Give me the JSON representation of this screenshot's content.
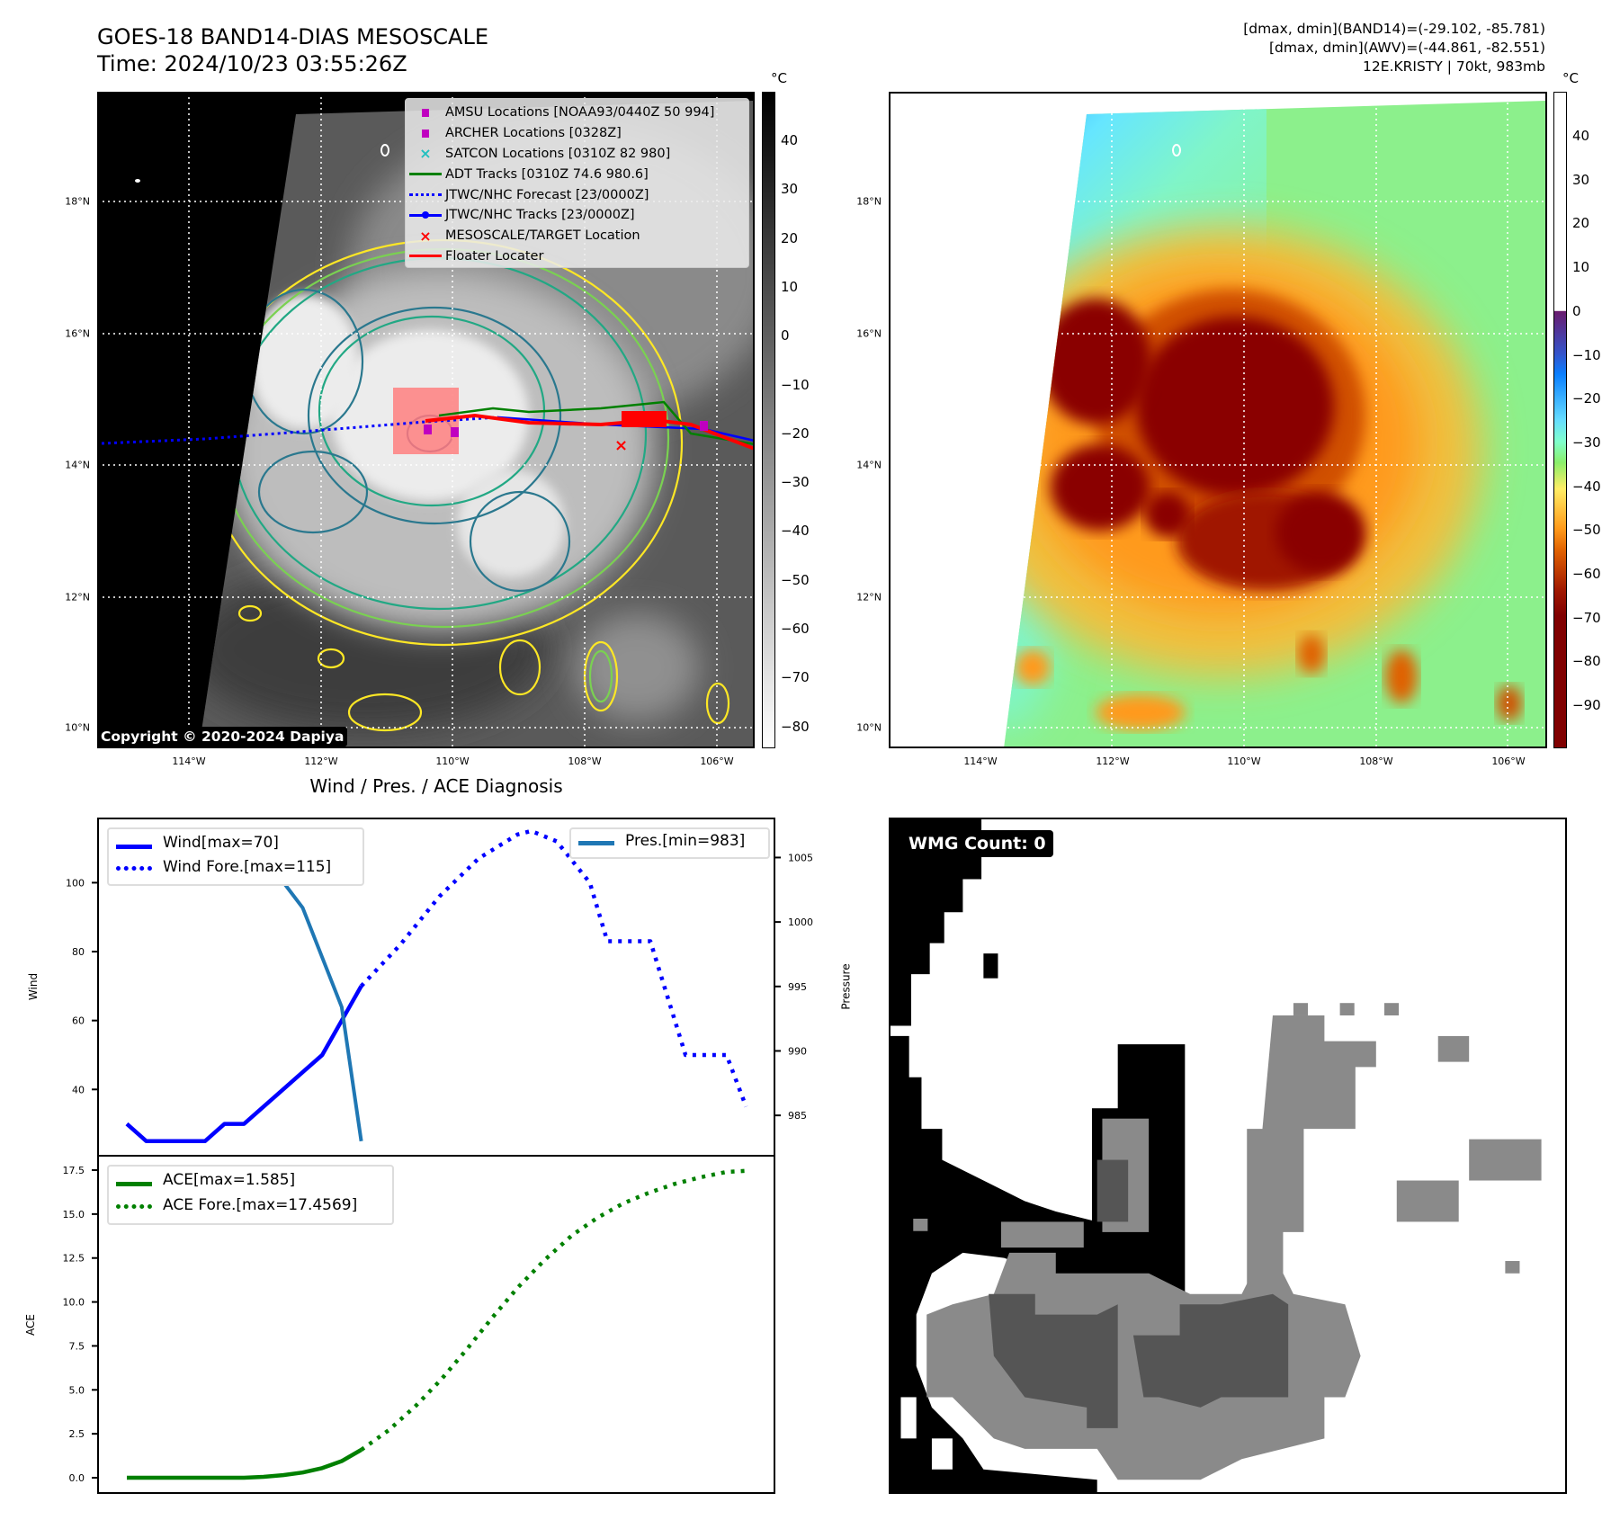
{
  "header": {
    "title_line1": "GOES-18 BAND14-DIAS MESOSCALE",
    "title_line2": "Time: 2024/10/23 03:55:26Z",
    "info_line1": "[dmax, dmin](BAND14)=(-29.102, -85.781)",
    "info_line2": "[dmax, dmin](AWV)=(-44.861, -82.551)",
    "info_line3": "12E.KRISTY | 70kt, 983mb"
  },
  "maps": {
    "lat_labels": [
      "18°N",
      "16°N",
      "14°N",
      "12°N",
      "10°N"
    ],
    "lon_labels": [
      "114°W",
      "112°W",
      "110°W",
      "108°W",
      "106°W"
    ],
    "left": {
      "colorbar_unit": "°C",
      "colorbar_ticks": [
        "40",
        "30",
        "20",
        "10",
        "0",
        "−10",
        "−20",
        "−30",
        "−40",
        "−50",
        "−60",
        "−70",
        "−80"
      ],
      "copyright": "Copyright © 2020-2024 Dapiya",
      "legend": [
        {
          "label": "AMSU Locations [NOAA93/0440Z 50 994]",
          "icon": "square-marker",
          "color": "#c000c0"
        },
        {
          "label": "ARCHER Locations [0328Z]",
          "icon": "square-marker",
          "color": "#c000c0"
        },
        {
          "label": "SATCON Locations [0310Z 82 980]",
          "icon": "x-marker",
          "color": "#20c0c0"
        },
        {
          "label": "ADT Tracks [0310Z 74.6 980.6]",
          "icon": "solid-line",
          "color": "#008000"
        },
        {
          "label": "JTWC/NHC Forecast [23/0000Z]",
          "icon": "dotted-line",
          "color": "#0000ff"
        },
        {
          "label": "JTWC/NHC Tracks [23/0000Z]",
          "icon": "line-dot",
          "color": "#0000ff"
        },
        {
          "label": "MESOSCALE/TARGET Location",
          "icon": "x-marker",
          "color": "#ff0000"
        },
        {
          "label": "Floater Locater",
          "icon": "solid-line",
          "color": "#ff0000"
        }
      ]
    },
    "right": {
      "colorbar_unit": "°C",
      "colorbar_ticks": [
        "40",
        "30",
        "20",
        "10",
        "0",
        "−10",
        "−20",
        "−30",
        "−40",
        "−50",
        "−60",
        "−70",
        "−80",
        "−90"
      ]
    }
  },
  "chart_data": [
    {
      "type": "line",
      "title": "Wind / Pres. / ACE Diagnosis",
      "ylabel": "Wind",
      "y2label": "Pressure",
      "xlim": [
        -1.52,
        33.2
      ],
      "ylim": [
        20.5,
        118.9
      ],
      "y2lim": [
        981.8,
        1008.1
      ],
      "yticks": [
        40,
        60,
        80,
        100
      ],
      "y2ticks": [
        985,
        990,
        995,
        1000,
        1005
      ],
      "legend_left": [
        "Wind[max=70]",
        "Wind Fore.[max=115]"
      ],
      "legend_right": [
        "Pres.[min=983]"
      ],
      "series": [
        {
          "name": "Wind[max=70]",
          "color": "#0000ff",
          "style": "solid",
          "axis": "left",
          "x": [
            0,
            1,
            2,
            3,
            4,
            5,
            6,
            7,
            8,
            9,
            10,
            11,
            12
          ],
          "y": [
            30,
            25,
            25,
            25,
            25,
            30,
            30,
            35,
            40,
            45,
            50,
            60,
            70
          ]
        },
        {
          "name": "Wind Fore.[max=115]",
          "color": "#0000ff",
          "style": "dotted",
          "axis": "left",
          "x": [
            12,
            14,
            16,
            18,
            20,
            20.7,
            22,
            23.7,
            24.6,
            26.8,
            28.6,
            30.7,
            31.7
          ],
          "y": [
            70,
            82,
            96,
            107,
            114,
            115,
            112,
            100,
            83,
            83,
            50,
            50,
            35
          ]
        },
        {
          "name": "Pres.[min=983]",
          "color": "#1f77b4",
          "style": "solid",
          "axis": "right",
          "x": [
            0,
            2,
            3,
            5,
            6,
            7,
            9,
            11,
            12
          ],
          "y": [
            1006.1,
            1006.1,
            1007.1,
            1007.1,
            1005.1,
            1005.1,
            1001.1,
            993.4,
            983
          ]
        }
      ]
    },
    {
      "type": "line",
      "ylabel": "ACE",
      "xlim": [
        -1.52,
        33.2
      ],
      "ylim": [
        -0.92,
        18.37
      ],
      "yticks": [
        0.0,
        2.5,
        5.0,
        7.5,
        10.0,
        12.5,
        15.0,
        17.5
      ],
      "ytick_labels": [
        "0.0",
        "2.5",
        "5.0",
        "7.5",
        "10.0",
        "12.5",
        "15.0",
        "17.5"
      ],
      "legend": [
        "ACE[max=1.585]",
        "ACE Fore.[max=17.4569]"
      ],
      "series": [
        {
          "name": "ACE[max=1.585]",
          "color": "#008000",
          "style": "solid",
          "x": [
            0,
            6,
            7,
            8,
            9,
            10,
            11,
            12
          ],
          "y": [
            0,
            0,
            0.05,
            0.15,
            0.3,
            0.55,
            0.95,
            1.585
          ]
        },
        {
          "name": "ACE Fore.[max=17.4569]",
          "color": "#008000",
          "style": "dotted",
          "x": [
            12,
            13.4,
            14.8,
            16.1,
            17.4,
            18.7,
            20,
            21.4,
            22.8,
            24.1,
            25.4,
            26.7,
            28,
            29.4,
            30.7,
            31.7
          ],
          "y": [
            1.585,
            2.7,
            4.1,
            5.6,
            7.3,
            9.1,
            10.8,
            12.4,
            13.8,
            14.8,
            15.6,
            16.2,
            16.7,
            17.1,
            17.4,
            17.4569
          ]
        }
      ]
    }
  ],
  "wmg": {
    "label": "WMG Count: 0"
  }
}
